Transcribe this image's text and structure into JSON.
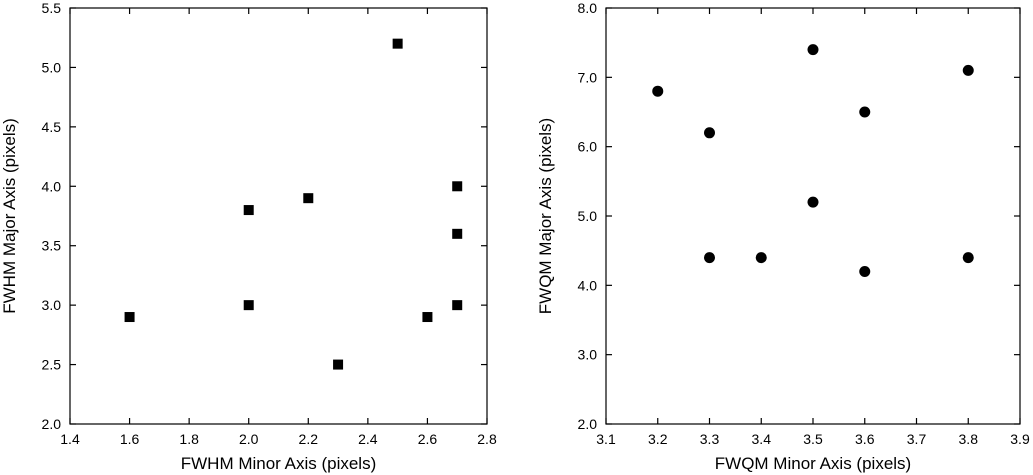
{
  "chart_data": [
    {
      "type": "scatter",
      "marker": "square",
      "xlabel": "FWHM Minor Axis (pixels)",
      "ylabel": "FWHM Major Axis (pixels)",
      "xlim": [
        1.4,
        2.8
      ],
      "ylim": [
        2.0,
        5.5
      ],
      "xticks": [
        "1.4",
        "1.6",
        "1.8",
        "2.0",
        "2.2",
        "2.4",
        "2.6",
        "2.8"
      ],
      "yticks": [
        "2.0",
        "2.5",
        "3.0",
        "3.5",
        "4.0",
        "4.5",
        "5.0",
        "5.5"
      ],
      "grid": false,
      "points": [
        {
          "x": 1.6,
          "y": 2.9
        },
        {
          "x": 2.0,
          "y": 3.8
        },
        {
          "x": 2.0,
          "y": 3.0
        },
        {
          "x": 2.2,
          "y": 3.9
        },
        {
          "x": 2.3,
          "y": 2.5
        },
        {
          "x": 2.5,
          "y": 5.2
        },
        {
          "x": 2.6,
          "y": 2.9
        },
        {
          "x": 2.7,
          "y": 4.0
        },
        {
          "x": 2.7,
          "y": 3.6
        },
        {
          "x": 2.7,
          "y": 3.0
        }
      ]
    },
    {
      "type": "scatter",
      "marker": "circle",
      "xlabel": "FWQM Minor Axis (pixels)",
      "ylabel": "FWQM Major Axis (pixels)",
      "xlim": [
        3.1,
        3.9
      ],
      "ylim": [
        2.0,
        8.0
      ],
      "xticks": [
        "3.1",
        "3.2",
        "3.3",
        "3.4",
        "3.5",
        "3.6",
        "3.7",
        "3.8",
        "3.9"
      ],
      "yticks": [
        "2.0",
        "3.0",
        "4.0",
        "5.0",
        "6.0",
        "7.0",
        "8.0"
      ],
      "grid": false,
      "points": [
        {
          "x": 3.2,
          "y": 6.8
        },
        {
          "x": 3.3,
          "y": 6.2
        },
        {
          "x": 3.3,
          "y": 4.4
        },
        {
          "x": 3.4,
          "y": 4.4
        },
        {
          "x": 3.5,
          "y": 7.4
        },
        {
          "x": 3.5,
          "y": 5.2
        },
        {
          "x": 3.6,
          "y": 6.5
        },
        {
          "x": 3.6,
          "y": 4.2
        },
        {
          "x": 3.8,
          "y": 7.1
        },
        {
          "x": 3.8,
          "y": 4.4
        }
      ]
    }
  ]
}
